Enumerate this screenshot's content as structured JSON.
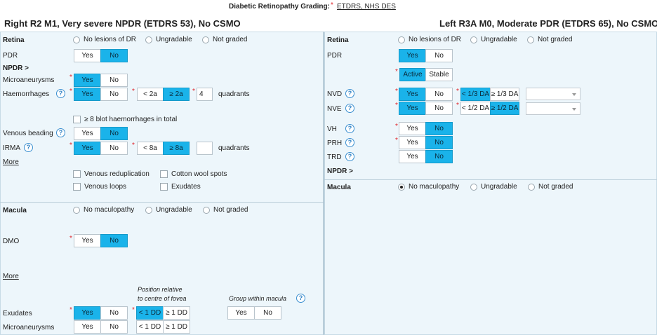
{
  "header": {
    "grading_label": "Diabetic Retinopathy Grading:",
    "grading_link": "ETDRS, NHS DES"
  },
  "right_eye": {
    "title": "Right R2 M1, Very severe NPDR (ETDRS 53), No CSMO",
    "retina": {
      "label": "Retina",
      "radio_options": [
        "No lesions of DR",
        "Ungradable",
        "Not graded"
      ],
      "pdr_label": "PDR",
      "pdr": {
        "yes": "Yes",
        "no": "No"
      },
      "npdr_label": "NPDR",
      "npdr_chevron": ">",
      "microaneurysms_label": "Microaneurysms",
      "microaneurysms": {
        "yes": "Yes",
        "no": "No"
      },
      "haemorrhages_label": "Haemorrhages",
      "haemorrhages": {
        "yes": "Yes",
        "no": "No"
      },
      "haem_count": {
        "lt": "< 2a",
        "ge": "≥ 2a"
      },
      "haem_quadrants_value": "4",
      "quadrants_label": "quadrants",
      "blot_haem_label": "≥ 8 blot haemorrhages in total",
      "venous_beading_label": "Venous beading",
      "venous_beading": {
        "yes": "Yes",
        "no": "No"
      },
      "irma_label": "IRMA",
      "irma": {
        "yes": "Yes",
        "no": "No"
      },
      "irma_count": {
        "lt": "< 8a",
        "ge": "≥ 8a"
      },
      "irma_quadrants_label": "quadrants",
      "more_label": "More",
      "venous_reduplication": "Venous reduplication",
      "cotton_wool": "Cotton wool spots",
      "venous_loops": "Venous loops",
      "exudates_chk": "Exudates"
    },
    "macula": {
      "label": "Macula",
      "radio_options": [
        "No maculopathy",
        "Ungradable",
        "Not graded"
      ],
      "dmo_label": "DMO",
      "dmo": {
        "yes": "Yes",
        "no": "No"
      },
      "more_label": "More",
      "position_heading_1": "Position relative",
      "position_heading_2": "to centre of fovea",
      "group_heading": "Group within macula",
      "group": {
        "yes": "Yes",
        "no": "No"
      },
      "exudates_label": "Exudates",
      "exudates": {
        "yes": "Yes",
        "no": "No"
      },
      "exudates_dd": {
        "lt": "< 1 DD",
        "ge": "≥ 1 DD"
      },
      "microaneurysms_label": "Microaneurysms",
      "microaneurysms": {
        "yes": "Yes",
        "no": "No"
      },
      "micro_dd": {
        "lt": "< 1 DD",
        "ge": "≥ 1 DD"
      }
    }
  },
  "left_eye": {
    "title": "Left R3A M0, Moderate PDR (ETDRS 65), No CSMO",
    "retina": {
      "label": "Retina",
      "radio_options": [
        "No lesions of DR",
        "Ungradable",
        "Not graded"
      ],
      "pdr_label": "PDR",
      "pdr": {
        "yes": "Yes",
        "no": "No"
      },
      "activity": {
        "active": "Active",
        "stable": "Stable"
      },
      "nvd_label": "NVD",
      "nvd": {
        "yes": "Yes",
        "no": "No"
      },
      "nvd_size": {
        "lt": "< 1/3 DA",
        "ge": "≥ 1/3 DA"
      },
      "nve_label": "NVE",
      "nve": {
        "yes": "Yes",
        "no": "No"
      },
      "nve_size": {
        "lt": "< 1/2 DA",
        "ge": "≥ 1/2 DA"
      },
      "vh_label": "VH",
      "vh": {
        "yes": "Yes",
        "no": "No"
      },
      "prh_label": "PRH",
      "prh": {
        "yes": "Yes",
        "no": "No"
      },
      "trd_label": "TRD",
      "trd": {
        "yes": "Yes",
        "no": "No"
      },
      "npdr_label": "NPDR",
      "npdr_chevron": ">"
    },
    "macula": {
      "label": "Macula",
      "radio_options": [
        "No maculopathy",
        "Ungradable",
        "Not graded"
      ],
      "selected": "No maculopathy"
    }
  },
  "icons": {
    "help": "?",
    "required": "*"
  },
  "colors": {
    "selected": "#1ab3ea",
    "panel": "#edf6fb",
    "required": "#e0282e"
  }
}
